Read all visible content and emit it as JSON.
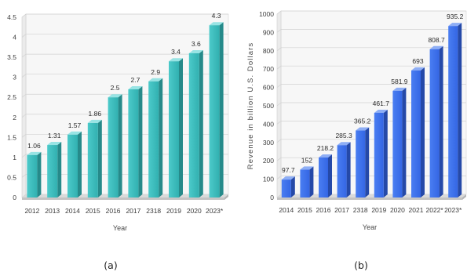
{
  "chart_data": [
    {
      "type": "bar",
      "three_d": true,
      "data_labels": true,
      "caption": "(a)",
      "categories": [
        "2012",
        "2013",
        "2014",
        "2015",
        "2016",
        "2017",
        "2318",
        "2019",
        "2020",
        "2023*"
      ],
      "values": [
        1.06,
        1.31,
        1.57,
        1.86,
        2.5,
        2.7,
        2.9,
        3.4,
        3.6,
        4.3
      ],
      "xlabel": "Year",
      "ylim": [
        0,
        4.5
      ],
      "yticks": [
        0,
        0.5,
        1,
        1.5,
        2,
        2.5,
        3,
        3.5,
        4,
        4.5
      ],
      "grid": true,
      "colors": {
        "front": "#31b0b0",
        "front_light": "#4ccaca",
        "side": "#268a8a",
        "top": "#98e4e4"
      }
    },
    {
      "type": "bar",
      "three_d": true,
      "data_labels": true,
      "caption": "(b)",
      "categories": [
        "2014",
        "2015",
        "2016",
        "2017",
        "2318",
        "2019",
        "2020",
        "2021",
        "2022*",
        "2023*"
      ],
      "values": [
        97.7,
        152,
        218.2,
        285.3,
        365.2,
        461.7,
        581.9,
        693,
        808.7,
        935.2
      ],
      "xlabel": "Year",
      "ylabel": "Revenue in billion U.S. Dollars",
      "ylim": [
        0,
        1000
      ],
      "yticks": [
        0,
        100,
        200,
        300,
        400,
        500,
        600,
        700,
        800,
        900,
        1000
      ],
      "grid": true,
      "colors": {
        "front": "#3466e4",
        "front_light": "#4a7ef2",
        "side": "#2549a8",
        "top": "#8eaef5"
      }
    }
  ]
}
